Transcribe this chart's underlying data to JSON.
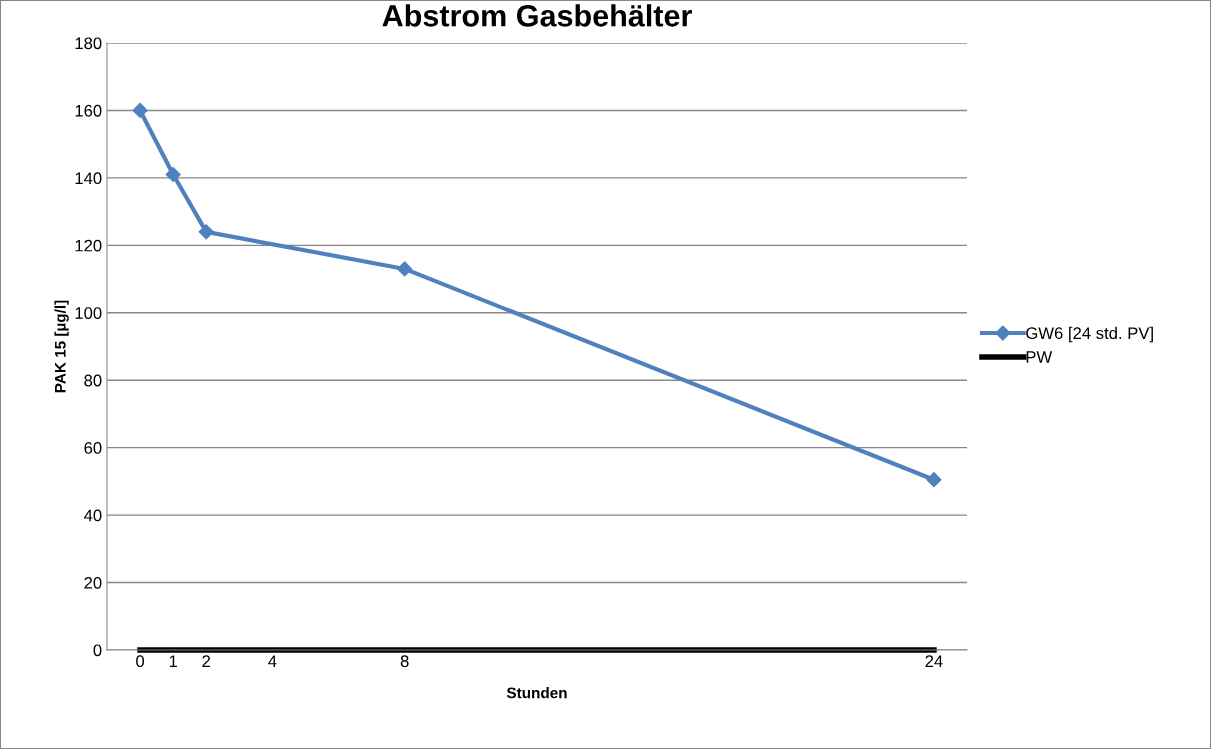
{
  "chart_data": {
    "type": "line",
    "title": "Abstrom Gasbehälter",
    "xlabel": "Stunden",
    "ylabel": "PAK 15 [µg/l]",
    "xlim": [
      -1,
      25
    ],
    "xticks": [
      0,
      1,
      2,
      4,
      8,
      24
    ],
    "ylim": [
      0,
      180
    ],
    "yticks": [
      0,
      20,
      40,
      60,
      80,
      100,
      120,
      140,
      160,
      180
    ],
    "grid": "y",
    "legend": "right",
    "series": [
      {
        "name": "GW6 [24 std. PV]",
        "color": "#4f81bd",
        "x": [
          0,
          1,
          2,
          8,
          24
        ],
        "values": [
          160,
          141,
          124,
          113,
          50.5
        ],
        "marker": "diamond"
      },
      {
        "name": "PW",
        "color": "#000000",
        "x": [
          0,
          24
        ],
        "values": [
          0,
          0
        ],
        "marker": "none"
      }
    ]
  }
}
